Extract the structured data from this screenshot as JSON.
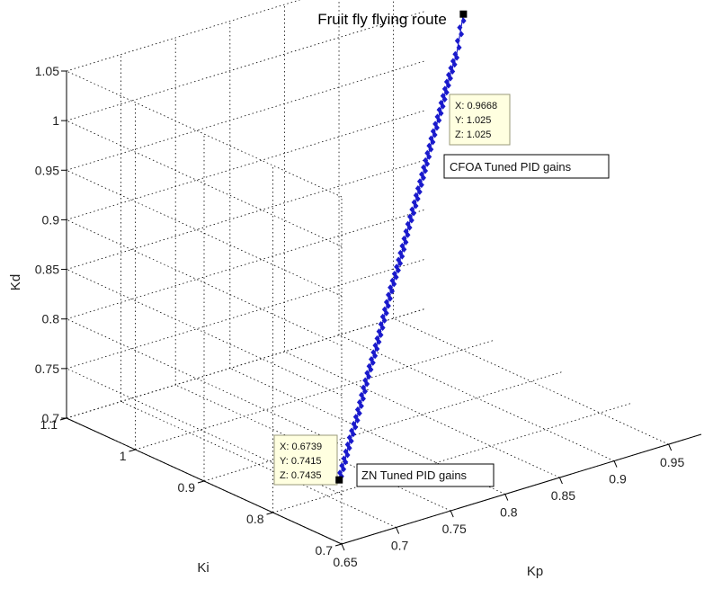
{
  "chart_data": {
    "type": "line",
    "title": "Fruit fly flying route",
    "xlabel": "Kp",
    "ylabel": "Ki",
    "zlabel": "Kd",
    "xlim": [
      0.65,
      0.98
    ],
    "ylim": [
      0.7,
      1.1
    ],
    "zlim": [
      0.7,
      1.05
    ],
    "x_ticks": [
      "0.65",
      "0.7",
      "0.75",
      "0.8",
      "0.85",
      "0.9",
      "0.95"
    ],
    "y_ticks": [
      "0.7",
      "0.8",
      "0.9",
      "1",
      "1.1"
    ],
    "z_ticks": [
      "0.7",
      "0.75",
      "0.8",
      "0.85",
      "0.9",
      "0.95",
      "1",
      "1.05"
    ],
    "grid": true,
    "series": [
      {
        "color": "#1a1acc",
        "marker": "diamond",
        "x": [
          0.6739,
          0.688,
          0.702,
          0.716,
          0.73,
          0.744,
          0.758,
          0.772,
          0.786,
          0.8,
          0.814,
          0.828,
          0.842,
          0.856,
          0.87,
          0.884,
          0.898,
          0.912,
          0.926,
          0.94,
          0.953,
          0.9668
        ],
        "y": [
          0.7415,
          0.755,
          0.769,
          0.782,
          0.796,
          0.81,
          0.823,
          0.837,
          0.851,
          0.865,
          0.878,
          0.892,
          0.906,
          0.919,
          0.933,
          0.947,
          0.961,
          0.974,
          0.988,
          1.002,
          1.013,
          1.025
        ],
        "z": [
          0.7435,
          0.756,
          0.768,
          0.78,
          0.793,
          0.806,
          0.818,
          0.83,
          0.843,
          0.856,
          0.868,
          0.88,
          0.893,
          0.906,
          0.918,
          0.93,
          0.943,
          0.956,
          0.968,
          0.98,
          0.993,
          1.025
        ]
      }
    ],
    "datatips": [
      {
        "x": 0.9668,
        "y": 1.025,
        "z": 1.025,
        "lines": [
          "X: 0.9668",
          "Y: 1.025",
          "Z: 1.025"
        ]
      },
      {
        "x": 0.6739,
        "y": 0.7415,
        "z": 0.7435,
        "lines": [
          "X: 0.6739",
          "Y: 0.7415",
          "Z: 0.7435"
        ]
      }
    ],
    "annotations": [
      "CFOA Tuned PID gains",
      "ZN Tuned PID gains"
    ]
  }
}
